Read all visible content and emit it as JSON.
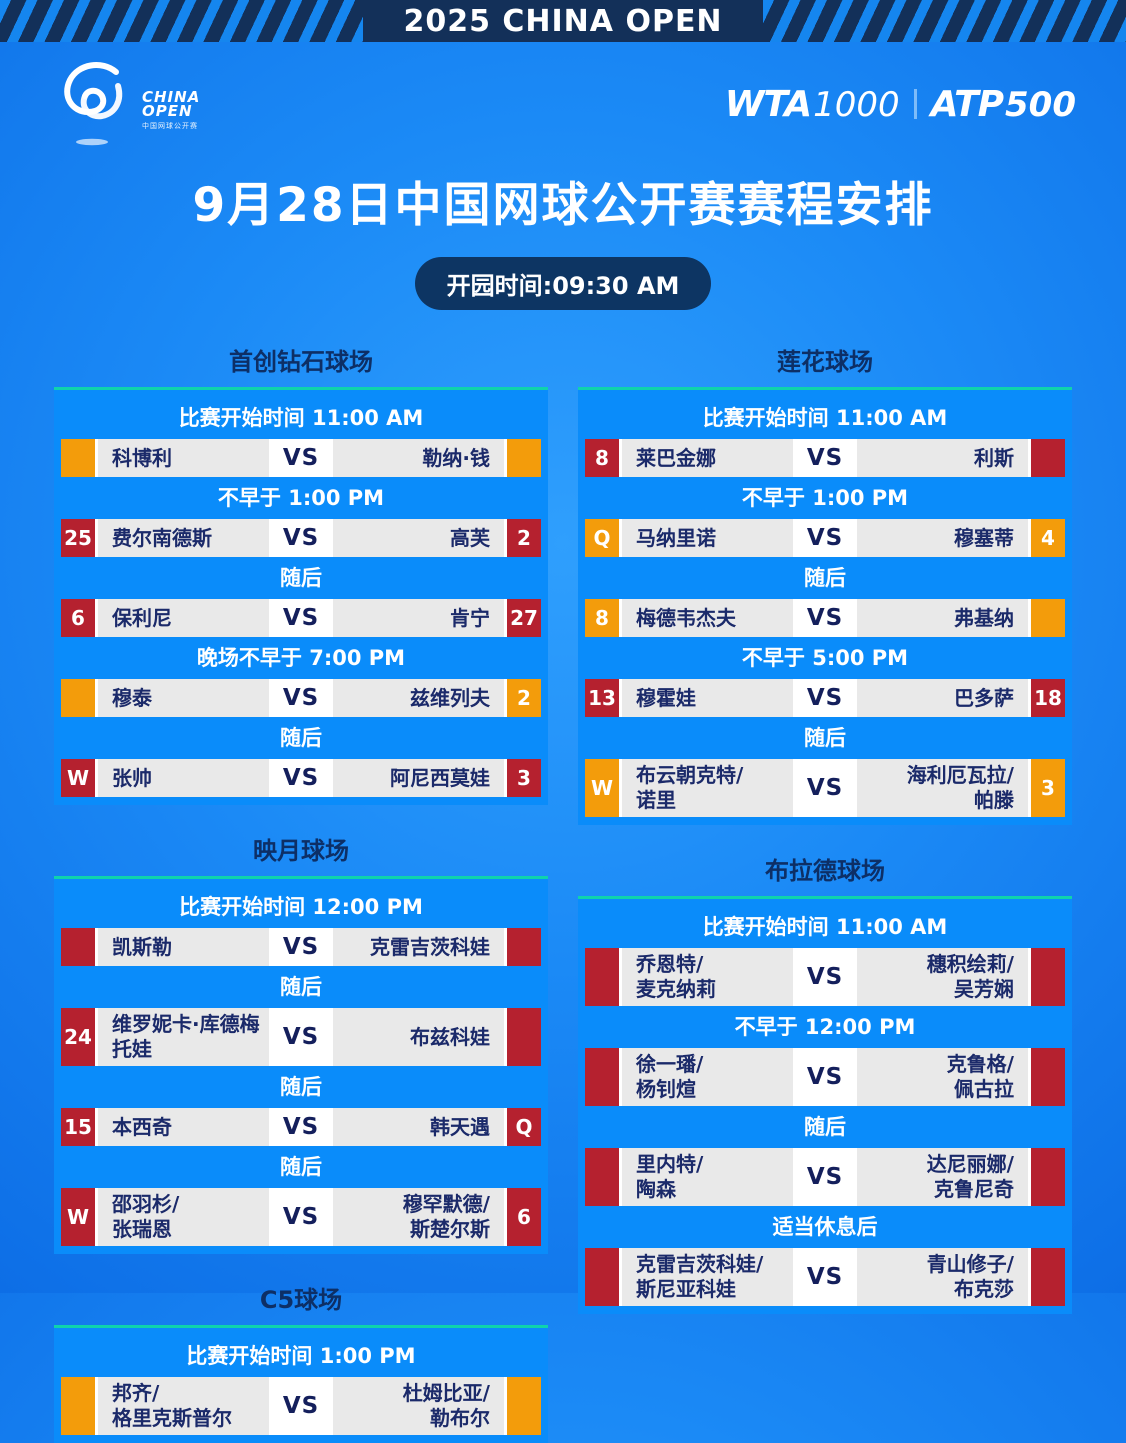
{
  "banner": {
    "title": "2025 CHINA OPEN"
  },
  "brand": {
    "logo_line1": "CHINA",
    "logo_line2": "OPEN",
    "logo_sub": "中国网球公开赛",
    "wta_name": "WTA",
    "wta_level": "1000",
    "atp_name": "ATP",
    "atp_level": "500"
  },
  "page": {
    "title": "9月28日中国网球公开赛赛程安排",
    "gate_time_label": "开园时间:09:30 AM",
    "vs_label": "VS"
  },
  "colors": {
    "orange": "#f39c0b",
    "red": "#b5212f",
    "panel_blue": "#0a8cfa",
    "teal_line": "#0fd3ac",
    "banner_navy": "#133059",
    "row_gray": "#e9e9e9",
    "name_navy": "#1b2a6a"
  },
  "courts": [
    {
      "name": "首创钻石球场",
      "column": "left",
      "rows": [
        {
          "kind": "time",
          "text": "比赛开始时间 11:00 AM"
        },
        {
          "kind": "match",
          "seed_left": "",
          "seed_left_color": "orange",
          "player_left": "科博利",
          "player_right": "勒纳·钱",
          "seed_right": "",
          "seed_right_color": "orange"
        },
        {
          "kind": "time",
          "text": "不早于 1:00 PM"
        },
        {
          "kind": "match",
          "seed_left": "25",
          "seed_left_color": "red",
          "player_left": "费尔南德斯",
          "player_right": "高芙",
          "seed_right": "2",
          "seed_right_color": "red"
        },
        {
          "kind": "time",
          "text": "随后"
        },
        {
          "kind": "match",
          "seed_left": "6",
          "seed_left_color": "red",
          "player_left": "保利尼",
          "player_right": "肯宁",
          "seed_right": "27",
          "seed_right_color": "red"
        },
        {
          "kind": "time",
          "text": "晚场不早于 7:00 PM"
        },
        {
          "kind": "match",
          "seed_left": "",
          "seed_left_color": "orange",
          "player_left": "穆泰",
          "player_right": "兹维列夫",
          "seed_right": "2",
          "seed_right_color": "orange"
        },
        {
          "kind": "time",
          "text": "随后"
        },
        {
          "kind": "match",
          "seed_left": "W",
          "seed_left_color": "red",
          "player_left": "张帅",
          "player_right": "阿尼西莫娃",
          "seed_right": "3",
          "seed_right_color": "red"
        }
      ]
    },
    {
      "name": "莲花球场",
      "column": "right",
      "rows": [
        {
          "kind": "time",
          "text": "比赛开始时间 11:00 AM"
        },
        {
          "kind": "match",
          "seed_left": "8",
          "seed_left_color": "red",
          "player_left": "莱巴金娜",
          "player_right": "利斯",
          "seed_right": "",
          "seed_right_color": "red"
        },
        {
          "kind": "time",
          "text": "不早于 1:00 PM"
        },
        {
          "kind": "match",
          "seed_left": "Q",
          "seed_left_color": "orange",
          "player_left": "马纳里诺",
          "player_right": "穆塞蒂",
          "seed_right": "4",
          "seed_right_color": "orange"
        },
        {
          "kind": "time",
          "text": "随后"
        },
        {
          "kind": "match",
          "seed_left": "8",
          "seed_left_color": "orange",
          "player_left": "梅德韦杰夫",
          "player_right": "弗基纳",
          "seed_right": "",
          "seed_right_color": "orange"
        },
        {
          "kind": "time",
          "text": "不早于 5:00 PM"
        },
        {
          "kind": "match",
          "seed_left": "13",
          "seed_left_color": "red",
          "player_left": "穆霍娃",
          "player_right": "巴多萨",
          "seed_right": "18",
          "seed_right_color": "red"
        },
        {
          "kind": "time",
          "text": "随后"
        },
        {
          "kind": "match",
          "seed_left": "W",
          "seed_left_color": "orange",
          "player_left": "布云朝克特/\n诺里",
          "player_right": "海利厄瓦拉/\n帕滕",
          "seed_right": "3",
          "seed_right_color": "orange"
        }
      ]
    },
    {
      "name": "映月球场",
      "column": "left",
      "rows": [
        {
          "kind": "time",
          "text": "比赛开始时间 12:00 PM"
        },
        {
          "kind": "match",
          "seed_left": "",
          "seed_left_color": "red",
          "player_left": "凯斯勒",
          "player_right": "克雷吉茨科娃",
          "seed_right": "",
          "seed_right_color": "red"
        },
        {
          "kind": "time",
          "text": "随后"
        },
        {
          "kind": "match",
          "seed_left": "24",
          "seed_left_color": "red",
          "player_left": "维罗妮卡·库德梅托娃",
          "player_right": "布兹科娃",
          "seed_right": "",
          "seed_right_color": "red"
        },
        {
          "kind": "time",
          "text": "随后"
        },
        {
          "kind": "match",
          "seed_left": "15",
          "seed_left_color": "red",
          "player_left": "本西奇",
          "player_right": "韩天遇",
          "seed_right": "Q",
          "seed_right_color": "red"
        },
        {
          "kind": "time",
          "text": "随后"
        },
        {
          "kind": "match",
          "seed_left": "W",
          "seed_left_color": "red",
          "player_left": "邵羽杉/\n张瑞恩",
          "player_right": "穆罕默德/\n斯楚尔斯",
          "seed_right": "6",
          "seed_right_color": "red"
        }
      ]
    },
    {
      "name": "布拉德球场",
      "column": "right",
      "rows": [
        {
          "kind": "time",
          "text": "比赛开始时间 11:00 AM"
        },
        {
          "kind": "match",
          "seed_left": "",
          "seed_left_color": "red",
          "player_left": "乔恩特/\n麦克纳莉",
          "player_right": "穗积绘莉/\n吴芳娴",
          "seed_right": "",
          "seed_right_color": "red"
        },
        {
          "kind": "time",
          "text": "不早于 12:00 PM"
        },
        {
          "kind": "match",
          "seed_left": "",
          "seed_left_color": "red",
          "player_left": "徐一璠/\n杨钊煊",
          "player_right": "克鲁格/\n佩古拉",
          "seed_right": "",
          "seed_right_color": "red"
        },
        {
          "kind": "time",
          "text": "随后"
        },
        {
          "kind": "match",
          "seed_left": "",
          "seed_left_color": "red",
          "player_left": "里内特/\n陶森",
          "player_right": "达尼丽娜/\n克鲁尼奇",
          "seed_right": "",
          "seed_right_color": "red"
        },
        {
          "kind": "time",
          "text": "适当休息后"
        },
        {
          "kind": "match",
          "seed_left": "",
          "seed_left_color": "red",
          "player_left": "克雷吉茨科娃/\n斯尼亚科娃",
          "player_right": "青山修子/\n布克莎",
          "seed_right": "",
          "seed_right_color": "red"
        }
      ]
    },
    {
      "name": "C5球场",
      "column": "left",
      "rows": [
        {
          "kind": "time",
          "text": "比赛开始时间 1:00 PM"
        },
        {
          "kind": "match",
          "seed_left": "",
          "seed_left_color": "orange",
          "player_left": "邦齐/\n格里克斯普尔",
          "player_right": "杜姆比亚/\n勒布尔",
          "seed_right": "",
          "seed_right_color": "orange"
        }
      ]
    }
  ]
}
